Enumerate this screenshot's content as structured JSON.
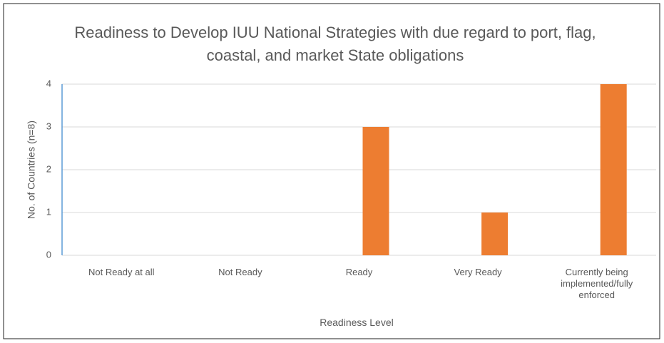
{
  "chart_data": {
    "type": "bar",
    "title": "Readiness to Develop IUU National Strategies with due regard to port, flag, coastal, and market State obligations",
    "x_label": "Readiness Level",
    "y_label": "No. of Countries (n=8)",
    "categories": [
      "Not Ready at all",
      "Not Ready",
      "Ready",
      "Very Ready",
      "Currently being implemented/fully enforced"
    ],
    "values": [
      0,
      0,
      3,
      1,
      4
    ],
    "color": "#ed7d31",
    "ylim": [
      0,
      4
    ],
    "yticks": [
      0,
      1,
      2,
      3,
      4
    ],
    "grid": true
  }
}
